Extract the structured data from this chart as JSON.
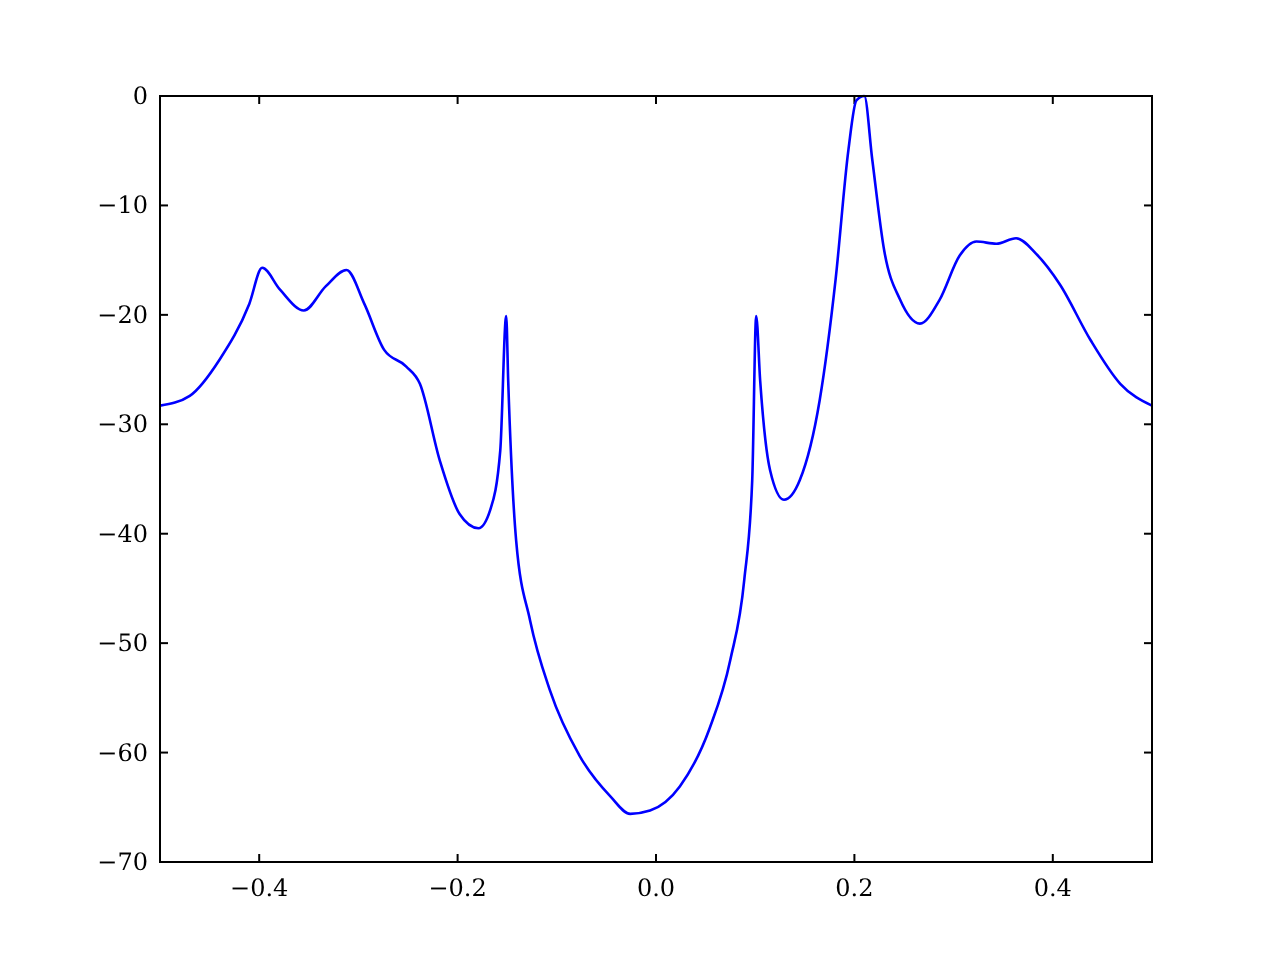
{
  "chart_data": {
    "type": "line",
    "x": [
      -0.5,
      -0.47,
      -0.44,
      -0.41,
      -0.397,
      -0.379,
      -0.355,
      -0.333,
      -0.312,
      -0.294,
      -0.274,
      -0.252,
      -0.238,
      -0.218,
      -0.198,
      -0.179,
      -0.167,
      -0.157,
      -0.151,
      -0.149,
      -0.141,
      -0.127,
      -0.107,
      -0.077,
      -0.046,
      -0.026,
      -0.006,
      0.024,
      0.054,
      0.075,
      0.089,
      0.097,
      0.101,
      0.105,
      0.115,
      0.129,
      0.145,
      0.165,
      0.181,
      0.194,
      0.202,
      0.21,
      0.218,
      0.23,
      0.246,
      0.266,
      0.286,
      0.306,
      0.323,
      0.343,
      0.363,
      0.383,
      0.407,
      0.438,
      0.468,
      0.5
    ],
    "series": [
      {
        "color": "#0000ff",
        "values": [
          -28.3,
          -27.4,
          -24.1,
          -19,
          -15.7,
          -17.7,
          -19.6,
          -17.4,
          -15.9,
          -19,
          -23.2,
          -24.7,
          -26.3,
          -33.3,
          -38.2,
          -39.5,
          -37.8,
          -32.4,
          -20.1,
          -26,
          -40.6,
          -47.9,
          -54.3,
          -60.3,
          -64,
          -65.6,
          -65.3,
          -63.1,
          -57.8,
          -51.5,
          -44.2,
          -35.1,
          -20.1,
          -26,
          -34.2,
          -36.9,
          -35.1,
          -27.8,
          -16.8,
          -4.9,
          -0.4,
          0,
          -5.8,
          -14.1,
          -18.6,
          -20.8,
          -18.6,
          -14.6,
          -13.3,
          -13.5,
          -13,
          -14.4,
          -17.2,
          -22.3,
          -26.3,
          -28.3
        ]
      }
    ],
    "xlim": [
      -0.5,
      0.5
    ],
    "xticks": [
      {
        "value": -0.4,
        "label": "−0.4"
      },
      {
        "value": -0.2,
        "label": "−0.2"
      },
      {
        "value": 0,
        "label": "0.0"
      },
      {
        "value": 0.2,
        "label": "0.2"
      },
      {
        "value": 0.4,
        "label": "0.4"
      }
    ],
    "ylim": [
      -70,
      0
    ],
    "yticks": [
      {
        "value": -70,
        "label": "−70"
      },
      {
        "value": -60,
        "label": "−60"
      },
      {
        "value": -50,
        "label": "−50"
      },
      {
        "value": -40,
        "label": "−40"
      },
      {
        "value": -30,
        "label": "−30"
      },
      {
        "value": -20,
        "label": "−20"
      },
      {
        "value": -10,
        "label": "−10"
      },
      0
    ],
    "grid": false,
    "marker": "none",
    "line_style": "solid"
  }
}
